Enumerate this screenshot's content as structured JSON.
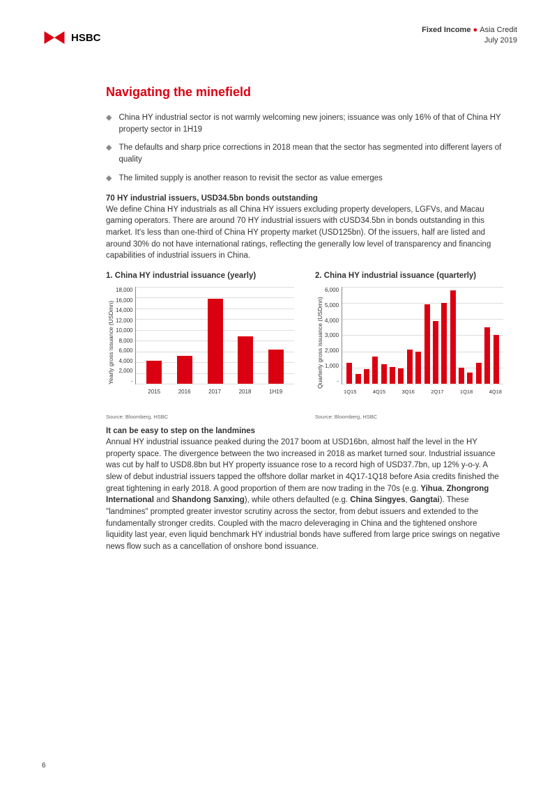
{
  "header": {
    "logo_text": "HSBC",
    "line1_bold": "Fixed Income",
    "line1_rest": "Asia Credit",
    "line2": "July 2019"
  },
  "title": "Navigating the minefield",
  "bullets": [
    "China HY industrial sector is not warmly welcoming new joiners; issuance was only 16% of that of China HY property sector in 1H19",
    "The defaults and sharp price corrections in 2018 mean that the sector has segmented into different layers of quality",
    "The limited supply is another reason to revisit the sector as value emerges"
  ],
  "section1": {
    "heading": "70 HY industrial issuers, USD34.5bn bonds outstanding",
    "body": "We define China HY industrials as all China HY issuers excluding property developers, LGFVs, and Macau gaming operators. There are around 70 HY industrial issuers with cUSD34.5bn in bonds outstanding in this market. It's less than one-third of China HY property market (USD125bn). Of the issuers, half are listed and around 30% do not have international ratings, reflecting the generally low level of transparency and financing capabilities of industrial issuers in China."
  },
  "chart1": {
    "type": "bar",
    "title": "1. China HY industrial issuance (yearly)",
    "y_label": "Yearly gross issuance (USDmn)",
    "ylim": [
      0,
      18000
    ],
    "ytick_step": 2000,
    "y_ticks": [
      "18,000",
      "16,000",
      "14,000",
      "12,000",
      "10,000",
      "8,000",
      "6,000",
      "4,000",
      "2,000",
      "-"
    ],
    "categories": [
      "2015",
      "2016",
      "2017",
      "2018",
      "1H19"
    ],
    "values": [
      4300,
      5200,
      15800,
      8800,
      6300
    ],
    "bar_color": "#db0011",
    "grid_color": "#dddddd",
    "axis_color": "#888888",
    "source": "Source: Bloomberg, HSBC"
  },
  "chart2": {
    "type": "bar",
    "title": "2. China HY industrial issuance (quarterly)",
    "y_label": "Quarterly gross issuance (USDmn)",
    "ylim": [
      0,
      6000
    ],
    "ytick_step": 1000,
    "y_ticks": [
      "6,000",
      "5,000",
      "4,000",
      "3,000",
      "2,000",
      "1,000",
      "-"
    ],
    "categories": [
      "1Q15",
      "2Q15",
      "3Q15",
      "4Q15",
      "1Q16",
      "2Q16",
      "3Q16",
      "4Q16",
      "1Q17",
      "2Q17",
      "3Q17",
      "4Q17",
      "1Q18",
      "2Q18",
      "3Q18",
      "4Q18",
      "1Q19",
      "2Q19"
    ],
    "x_labels_shown": [
      "1Q15",
      "4Q15",
      "3Q16",
      "2Q17",
      "1Q18",
      "4Q18"
    ],
    "values": [
      1300,
      600,
      900,
      1700,
      1200,
      1050,
      950,
      2100,
      2000,
      4900,
      3900,
      5000,
      5800,
      1000,
      700,
      1300,
      3500,
      3000
    ],
    "bar_color": "#db0011",
    "grid_color": "#dddddd",
    "axis_color": "#888888",
    "source": "Source: Bloomberg, HSBC"
  },
  "section2": {
    "heading": "It can be easy to step on the landmines",
    "body_parts": [
      "Annual HY industrial issuance peaked during the 2017 boom at USD16bn, almost half the level in the HY property space. The divergence between the two increased in 2018 as market turned sour. Industrial issuance was cut by half to USD8.8bn but HY property issuance rose to a record high of USD37.7bn, up 12% y-o-y. A slew of debut industrial issuers tapped the offshore dollar market in 4Q17-1Q18 before Asia credits finished the great tightening in early 2018. A good proportion of them are now trading in the 70s (e.g. ",
      "Yihua",
      ", ",
      "Zhongrong International",
      " and ",
      "Shandong Sanxing",
      "), while others defaulted (e.g. ",
      "China Singyes",
      ", ",
      "Gangtai",
      "). These \"landmines\" prompted greater investor scrutiny across the sector, from debut issuers and extended to the fundamentally stronger credits. Coupled with the macro deleveraging in China and the tightened onshore liquidity last year, even liquid benchmark HY industrial bonds have suffered from large price swings on negative news flow such as a cancellation of onshore bond issuance."
    ]
  },
  "page_number": "6",
  "colors": {
    "brand_red": "#db0011",
    "text": "#333333",
    "grid": "#dddddd"
  }
}
